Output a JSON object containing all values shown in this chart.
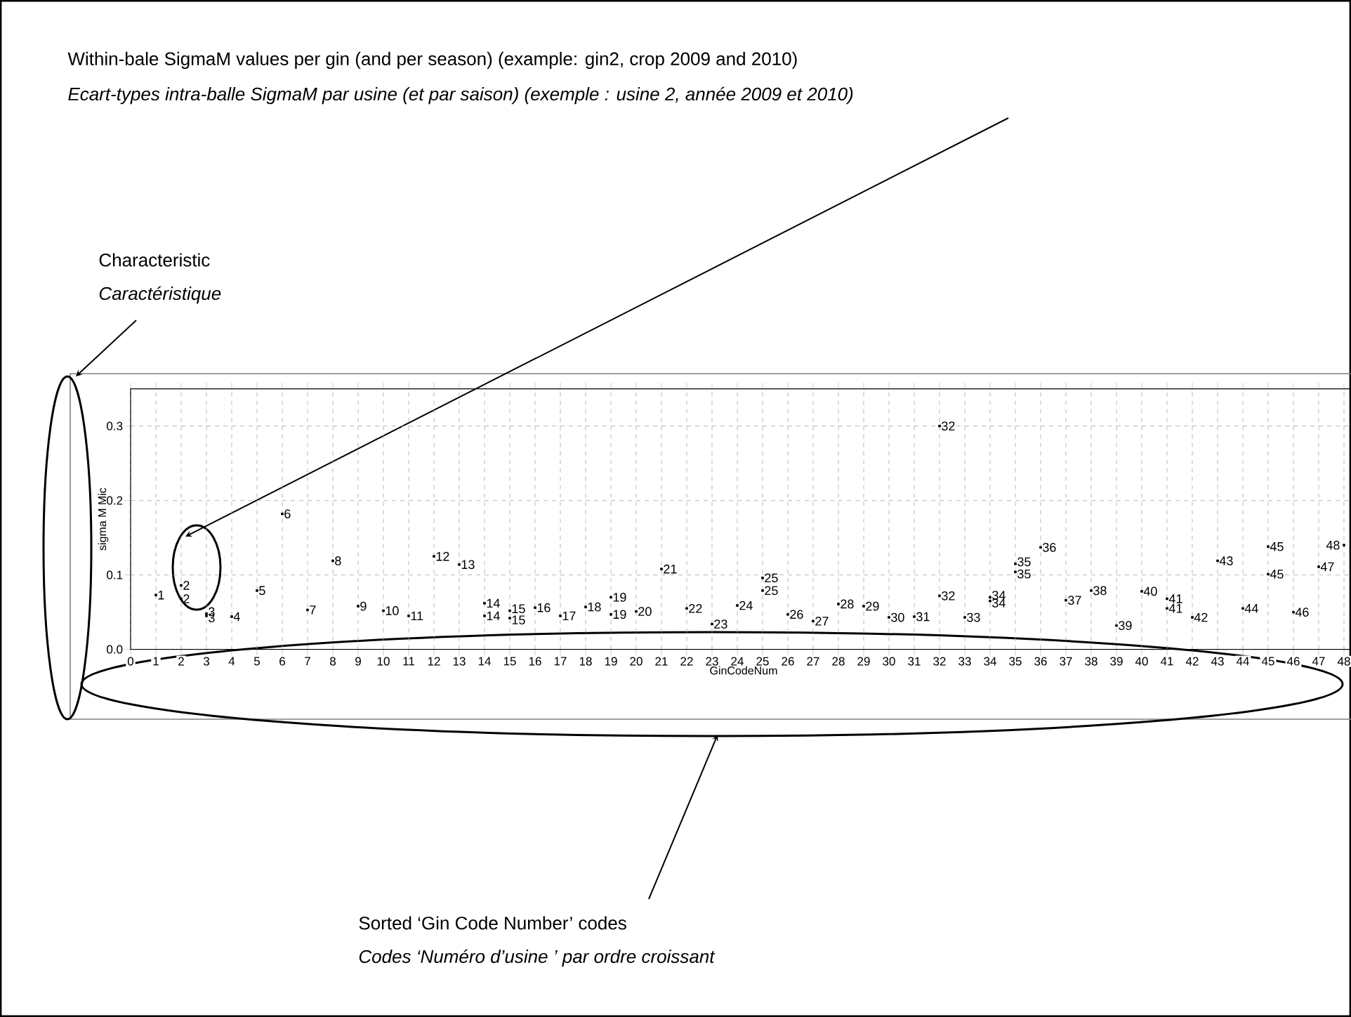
{
  "chart_data": {
    "type": "scatter",
    "marker": "square",
    "grid": true,
    "xlabel": "GinCodeNum",
    "ylabel": "sigma M Mic",
    "xlim": [
      0,
      48.5
    ],
    "ylim": [
      0,
      0.35
    ],
    "xticks": [
      0,
      1,
      2,
      3,
      4,
      5,
      6,
      7,
      8,
      9,
      10,
      11,
      12,
      13,
      14,
      15,
      16,
      17,
      18,
      19,
      20,
      21,
      22,
      23,
      24,
      25,
      26,
      27,
      28,
      29,
      30,
      31,
      32,
      33,
      34,
      35,
      36,
      37,
      38,
      39,
      40,
      41,
      42,
      43,
      44,
      45,
      46,
      47,
      48
    ],
    "yticks": [
      {
        "value": 0,
        "label": "0.0"
      },
      {
        "value": 0.1,
        "label": "0.1"
      },
      {
        "value": 0.2,
        "label": "0.2"
      },
      {
        "value": 0.3,
        "label": "0.3"
      }
    ],
    "series": [
      {
        "name": "1",
        "color": "#000000",
        "x": [
          1
        ],
        "values": [
          0.073
        ]
      },
      {
        "name": "2",
        "color": "#000000",
        "x": [
          2,
          2
        ],
        "values": [
          0.086,
          0.068
        ]
      },
      {
        "name": "3",
        "color": "#000000",
        "x": [
          3,
          3
        ],
        "values": [
          0.048,
          0.045
        ]
      },
      {
        "name": "4",
        "color": "#000000",
        "x": [
          4
        ],
        "values": [
          0.044
        ]
      },
      {
        "name": "5",
        "color": "#000000",
        "x": [
          5
        ],
        "values": [
          0.079
        ]
      },
      {
        "name": "6",
        "color": "#000000",
        "x": [
          6
        ],
        "values": [
          0.182
        ]
      },
      {
        "name": "7",
        "color": "#000000",
        "x": [
          7
        ],
        "values": [
          0.053
        ]
      },
      {
        "name": "8",
        "color": "#000000",
        "x": [
          8
        ],
        "values": [
          0.119
        ]
      },
      {
        "name": "9",
        "color": "#000000",
        "x": [
          9
        ],
        "values": [
          0.058
        ]
      },
      {
        "name": "10",
        "color": "#000000",
        "x": [
          10
        ],
        "values": [
          0.052
        ]
      },
      {
        "name": "11",
        "color": "#000000",
        "x": [
          11
        ],
        "values": [
          0.045
        ]
      },
      {
        "name": "12",
        "color": "#000000",
        "x": [
          12
        ],
        "values": [
          0.125
        ]
      },
      {
        "name": "13",
        "color": "#000000",
        "x": [
          13
        ],
        "values": [
          0.114
        ]
      },
      {
        "name": "14",
        "color": "#000000",
        "x": [
          14,
          14
        ],
        "values": [
          0.062,
          0.045
        ]
      },
      {
        "name": "15",
        "color": "#000000",
        "x": [
          15,
          15
        ],
        "values": [
          0.052,
          0.042
        ]
      },
      {
        "name": "16",
        "color": "#000000",
        "x": [
          16
        ],
        "values": [
          0.056
        ]
      },
      {
        "name": "17",
        "color": "#000000",
        "x": [
          17
        ],
        "values": [
          0.045
        ]
      },
      {
        "name": "18",
        "color": "#000000",
        "x": [
          18
        ],
        "values": [
          0.057
        ]
      },
      {
        "name": "19",
        "color": "#000000",
        "x": [
          19,
          19
        ],
        "values": [
          0.07,
          0.047
        ]
      },
      {
        "name": "20",
        "color": "#000000",
        "x": [
          20
        ],
        "values": [
          0.051
        ]
      },
      {
        "name": "21",
        "color": "#000000",
        "x": [
          21
        ],
        "values": [
          0.108
        ]
      },
      {
        "name": "22",
        "color": "#000000",
        "x": [
          22
        ],
        "values": [
          0.055
        ]
      },
      {
        "name": "23",
        "color": "#000000",
        "x": [
          23
        ],
        "values": [
          0.034
        ]
      },
      {
        "name": "24",
        "color": "#000000",
        "x": [
          24
        ],
        "values": [
          0.059
        ]
      },
      {
        "name": "25",
        "color": "#000000",
        "x": [
          25,
          25
        ],
        "values": [
          0.096,
          0.079
        ]
      },
      {
        "name": "26",
        "color": "#000000",
        "x": [
          26
        ],
        "values": [
          0.047
        ]
      },
      {
        "name": "27",
        "color": "#000000",
        "x": [
          27
        ],
        "values": [
          0.038
        ]
      },
      {
        "name": "28",
        "color": "#000000",
        "x": [
          28
        ],
        "values": [
          0.061
        ]
      },
      {
        "name": "29",
        "color": "#000000",
        "x": [
          29
        ],
        "values": [
          0.058
        ]
      },
      {
        "name": "30",
        "color": "#000000",
        "x": [
          30
        ],
        "values": [
          0.043
        ]
      },
      {
        "name": "31",
        "color": "#000000",
        "x": [
          31
        ],
        "values": [
          0.044
        ]
      },
      {
        "name": "32",
        "color": "#000000",
        "x": [
          32,
          32
        ],
        "values": [
          0.3,
          0.072
        ]
      },
      {
        "name": "33",
        "color": "#000000",
        "x": [
          33
        ],
        "values": [
          0.043
        ]
      },
      {
        "name": "34",
        "color": "#000000",
        "x": [
          34,
          34
        ],
        "values": [
          0.07,
          0.065
        ]
      },
      {
        "name": "35",
        "color": "#000000",
        "x": [
          35,
          35
        ],
        "values": [
          0.115,
          0.104
        ]
      },
      {
        "name": "36",
        "color": "#000000",
        "x": [
          36
        ],
        "values": [
          0.137
        ]
      },
      {
        "name": "37",
        "color": "#000000",
        "x": [
          37
        ],
        "values": [
          0.066
        ]
      },
      {
        "name": "38",
        "color": "#000000",
        "x": [
          38
        ],
        "values": [
          0.079
        ]
      },
      {
        "name": "39",
        "color": "#000000",
        "x": [
          39
        ],
        "values": [
          0.032
        ]
      },
      {
        "name": "40",
        "color": "#000000",
        "x": [
          40
        ],
        "values": [
          0.078
        ]
      },
      {
        "name": "41",
        "color": "#000000",
        "x": [
          41,
          41
        ],
        "values": [
          0.068,
          0.055
        ]
      },
      {
        "name": "42",
        "color": "#000000",
        "x": [
          42
        ],
        "values": [
          0.043
        ]
      },
      {
        "name": "43",
        "color": "#000000",
        "x": [
          43
        ],
        "values": [
          0.119
        ]
      },
      {
        "name": "44",
        "color": "#000000",
        "x": [
          44
        ],
        "values": [
          0.055
        ]
      },
      {
        "name": "45",
        "color": "#000000",
        "x": [
          45,
          45
        ],
        "values": [
          0.138,
          0.101
        ]
      },
      {
        "name": "46",
        "color": "#000000",
        "x": [
          46
        ],
        "values": [
          0.05
        ]
      },
      {
        "name": "47",
        "color": "#000000",
        "x": [
          47
        ],
        "values": [
          0.111
        ]
      },
      {
        "name": "48",
        "color": "#000000",
        "x": [
          48
        ],
        "values": [
          0.14
        ]
      }
    ],
    "annotations": [
      "Within-bale SigmaM values per gin (and per season) (example: gin2, crop 2009 and 2010)",
      "Ecart-types intra-balle SigmaM par usine (et par saison) (exemple : usine 2, année 2009 et 2010)",
      "Characteristic",
      "Caractéristique",
      "Sorted ‘Gin Code Number’ codes",
      "Codes ‘Numéro d’usine ’ par ordre croissant"
    ]
  }
}
